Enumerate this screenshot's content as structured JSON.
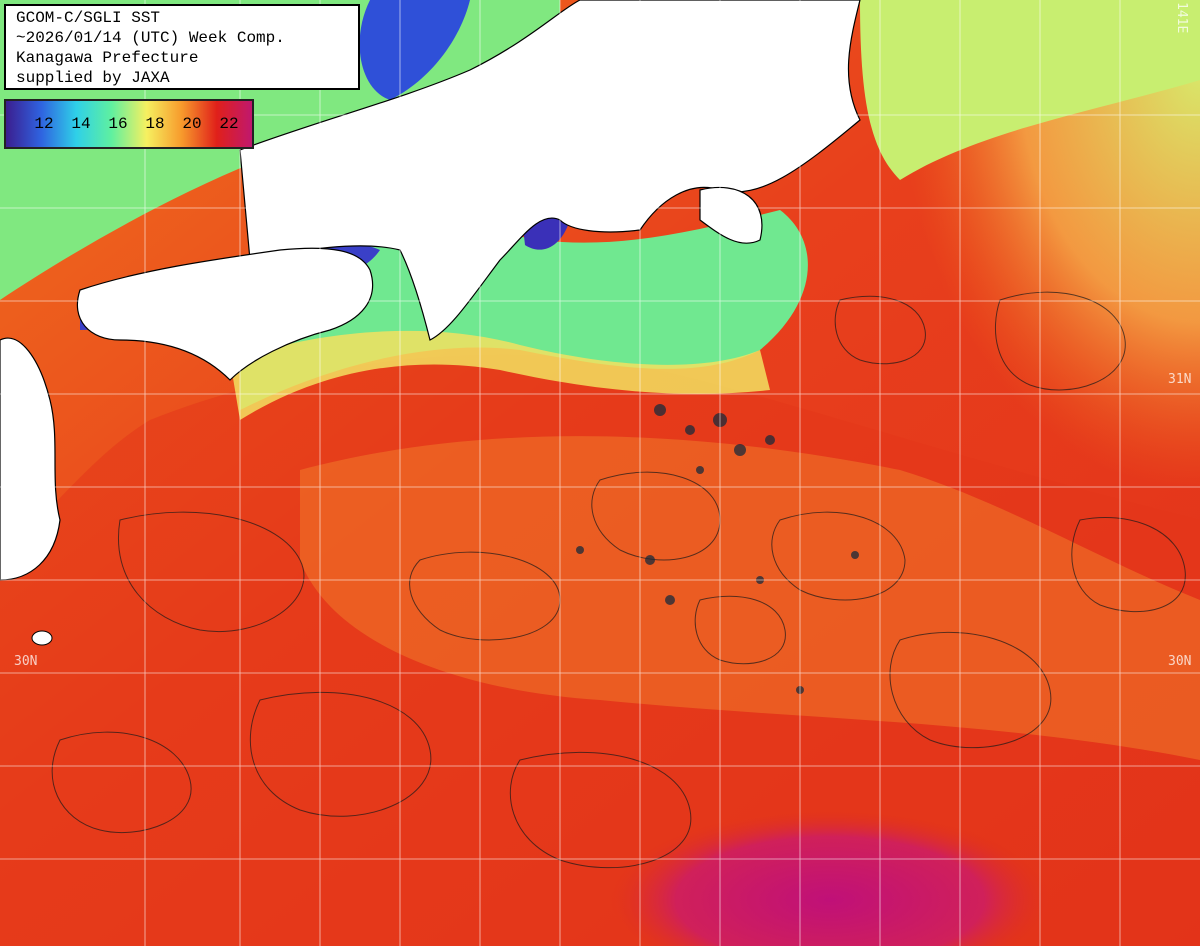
{
  "title": {
    "line1": "GCOM-C/SGLI SST",
    "line2": "~2026/01/14 (UTC) Week Comp.",
    "line3": "Kanagawa Prefecture",
    "line4": "supplied by JAXA"
  },
  "legend": {
    "labels": [
      "12",
      "14",
      "16",
      "18",
      "20",
      "22"
    ],
    "colors": [
      "#3b1e8f",
      "#2f63e0",
      "#2fd0e8",
      "#5ff0a0",
      "#f6f060",
      "#f79a2c",
      "#e0201a",
      "#c0186e"
    ]
  },
  "grid": {
    "lat_labels": [
      "31N",
      "30N",
      "30N"
    ],
    "top_right_label": "141E"
  },
  "colors": {
    "land": "#ffffff",
    "warm_sea": "#e8341c",
    "sea_orange": "#f0701e",
    "cool_sea": "#7ee87a",
    "coastal_cold": "#3a40c8",
    "hot_core": "#c01078",
    "grid_line": "#ffffff"
  }
}
